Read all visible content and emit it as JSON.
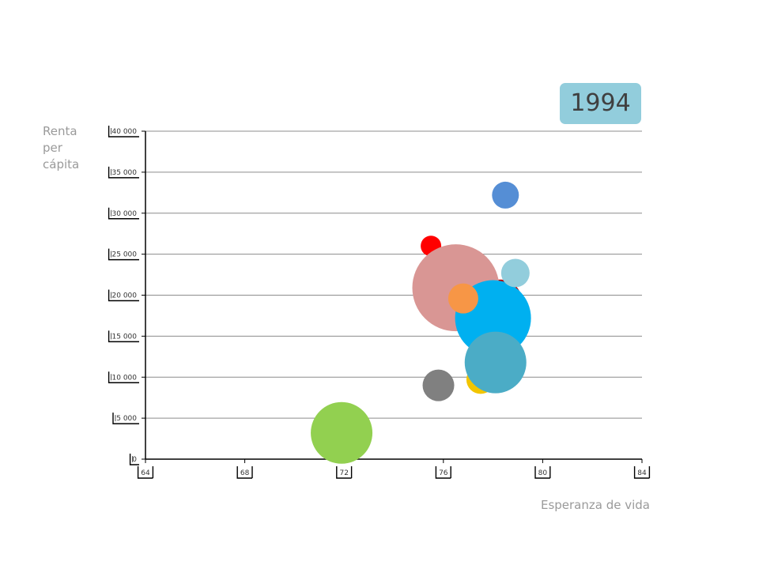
{
  "chart_data": {
    "type": "bubble",
    "year": "1994",
    "xlabel": "Esperanza de vida",
    "ylabel": "Renta per cápita",
    "xlim": [
      64,
      84
    ],
    "ylim": [
      0,
      40000
    ],
    "x_ticks": [
      64,
      68,
      72,
      76,
      80,
      84
    ],
    "y_ticks": [
      0,
      5000,
      10000,
      15000,
      20000,
      25000,
      30000,
      35000,
      40000
    ],
    "x_tick_labels": [
      "64",
      "68",
      "72",
      "76",
      "80",
      "84"
    ],
    "y_tick_labels": [
      "0",
      "5 000",
      "10 000",
      "15 000",
      "20 000",
      "25 000",
      "30 000",
      "35 000",
      "40 000"
    ],
    "grid": "horizontal",
    "bubbles": [
      {
        "x": 71.9,
        "y": 3200,
        "size": 39,
        "color": "#92d050"
      },
      {
        "x": 75.8,
        "y": 9000,
        "size": 20,
        "color": "#808080"
      },
      {
        "x": 77.5,
        "y": 9700,
        "size": 18,
        "color": "#f2c500"
      },
      {
        "x": 75.5,
        "y": 26000,
        "size": 13,
        "color": "#ff0000"
      },
      {
        "x": 78.5,
        "y": 32200,
        "size": 17,
        "color": "#558ed5"
      },
      {
        "x": 78.3,
        "y": 19300,
        "size": 27,
        "color": "#c00000"
      },
      {
        "x": 76.5,
        "y": 20900,
        "size": 55,
        "color": "#d99694"
      },
      {
        "x": 78.0,
        "y": 17200,
        "size": 48,
        "color": "#00b0f0"
      },
      {
        "x": 78.9,
        "y": 22700,
        "size": 18,
        "color": "#92cddc"
      },
      {
        "x": 76.8,
        "y": 19600,
        "size": 19,
        "color": "#f79646"
      },
      {
        "x": 78.1,
        "y": 11800,
        "size": 39,
        "color": "#4bacc6"
      }
    ]
  }
}
